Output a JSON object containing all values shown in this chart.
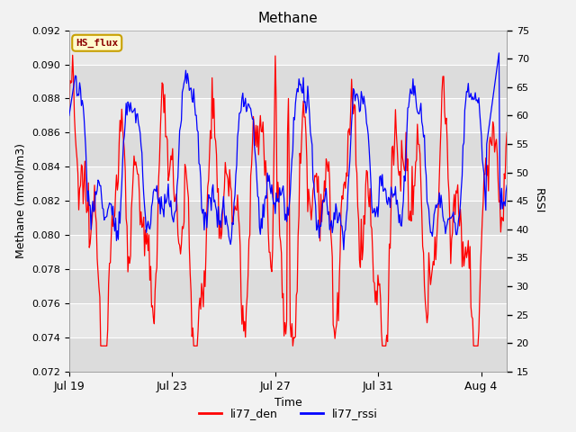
{
  "title": "Methane",
  "xlabel": "Time",
  "ylabel_left": "Methane (mmol/m3)",
  "ylabel_right": "RSSI",
  "ylim_left": [
    0.072,
    0.092
  ],
  "ylim_right": [
    15,
    75
  ],
  "yticks_left": [
    0.072,
    0.074,
    0.076,
    0.078,
    0.08,
    0.082,
    0.084,
    0.086,
    0.088,
    0.09,
    0.092
  ],
  "yticks_right": [
    15,
    20,
    25,
    30,
    35,
    40,
    45,
    50,
    55,
    60,
    65,
    70,
    75
  ],
  "xtick_labels": [
    "Jul 19",
    "Jul 23",
    "Jul 27",
    "Jul 31",
    "Aug 4"
  ],
  "xtick_positions": [
    0,
    4,
    8,
    12,
    16
  ],
  "color_red": "#FF0000",
  "color_blue": "#0000FF",
  "bg_outer": "#f2f2f2",
  "bg_inner": "#e8e8e8",
  "legend_label_red": "li77_den",
  "legend_label_blue": "li77_rssi",
  "tag_text": "HS_flux",
  "tag_bg": "#FFFACD",
  "tag_border": "#C8A000",
  "tag_text_color": "#8B0000",
  "n_points": 500,
  "xlim": [
    0,
    17
  ]
}
